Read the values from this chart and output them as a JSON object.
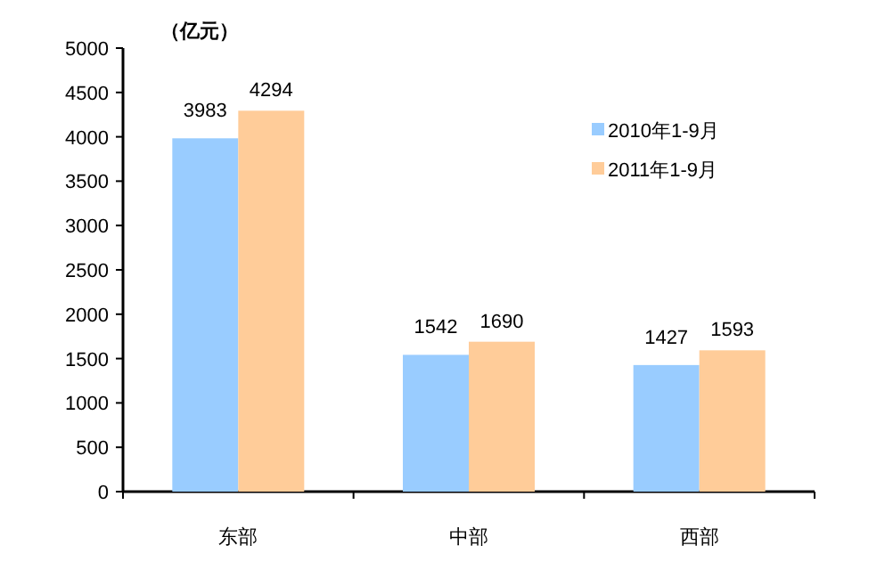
{
  "chart_data": {
    "type": "bar",
    "ylabel": "（亿元）",
    "categories": [
      "东部",
      "中部",
      "西部"
    ],
    "series": [
      {
        "name": "2010年1-9月",
        "color": "#99ccff",
        "values": [
          3983,
          1542,
          1427
        ]
      },
      {
        "name": "2011年1-9月",
        "color": "#ffcc99",
        "values": [
          4294,
          1690,
          1593
        ]
      }
    ],
    "ylim": [
      0,
      5000
    ],
    "yticks": [
      0,
      500,
      1000,
      1500,
      2000,
      2500,
      3000,
      3500,
      4000,
      4500,
      5000
    ],
    "data_labels": true,
    "grid": false,
    "legend": "top right"
  }
}
